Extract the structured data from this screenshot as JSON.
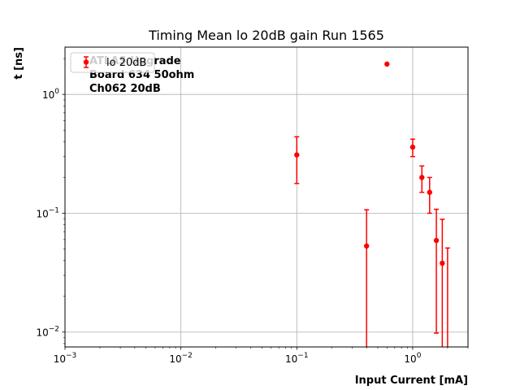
{
  "chart_data": {
    "type": "scatter",
    "title": "Timing Mean lo 20dB gain Run 1565",
    "xlabel": "Input Current [mA]",
    "ylabel": "t [ns]",
    "xscale": "log",
    "yscale": "log",
    "xlim": [
      0.001,
      3.0
    ],
    "ylim": [
      0.0075,
      2.5
    ],
    "grid": true,
    "x_ticks": [
      {
        "value": 0.001,
        "mantissa": "10",
        "exp": "−3"
      },
      {
        "value": 0.01,
        "mantissa": "10",
        "exp": "−2"
      },
      {
        "value": 0.1,
        "mantissa": "10",
        "exp": "−1"
      },
      {
        "value": 1,
        "mantissa": "10",
        "exp": "0"
      }
    ],
    "y_ticks": [
      {
        "value": 0.01,
        "mantissa": "10",
        "exp": "−2"
      },
      {
        "value": 0.1,
        "mantissa": "10",
        "exp": "−1"
      },
      {
        "value": 1,
        "mantissa": "10",
        "exp": "0"
      }
    ],
    "annotations": [
      "ATLAS Upgrade",
      "Board 634 50ohm",
      "Ch062 20dB"
    ],
    "legend": {
      "placement": "upper-left",
      "entries": [
        "lo 20dB"
      ]
    },
    "series": [
      {
        "name": "lo 20dB",
        "color": "#ff0000",
        "points": [
          {
            "x": 0.1,
            "y": 0.31,
            "err_low": 0.178,
            "err_high": 0.44
          },
          {
            "x": 0.4,
            "y": 0.053,
            "err_low": 0.0,
            "err_high": 0.107
          },
          {
            "x": 0.6,
            "y": 1.8,
            "err_low": 1.8,
            "err_high": 1.8
          },
          {
            "x": 1.0,
            "y": 0.36,
            "err_low": 0.3,
            "err_high": 0.42
          },
          {
            "x": 1.2,
            "y": 0.2,
            "err_low": 0.15,
            "err_high": 0.25
          },
          {
            "x": 1.4,
            "y": 0.15,
            "err_low": 0.1,
            "err_high": 0.2
          },
          {
            "x": 1.6,
            "y": 0.059,
            "err_low": 0.0098,
            "err_high": 0.108
          },
          {
            "x": 1.8,
            "y": 0.038,
            "err_low": 0.0,
            "err_high": 0.089
          },
          {
            "x": 2.0,
            "y": 0.0,
            "err_low": 0.0,
            "err_high": 0.051
          }
        ]
      }
    ]
  }
}
